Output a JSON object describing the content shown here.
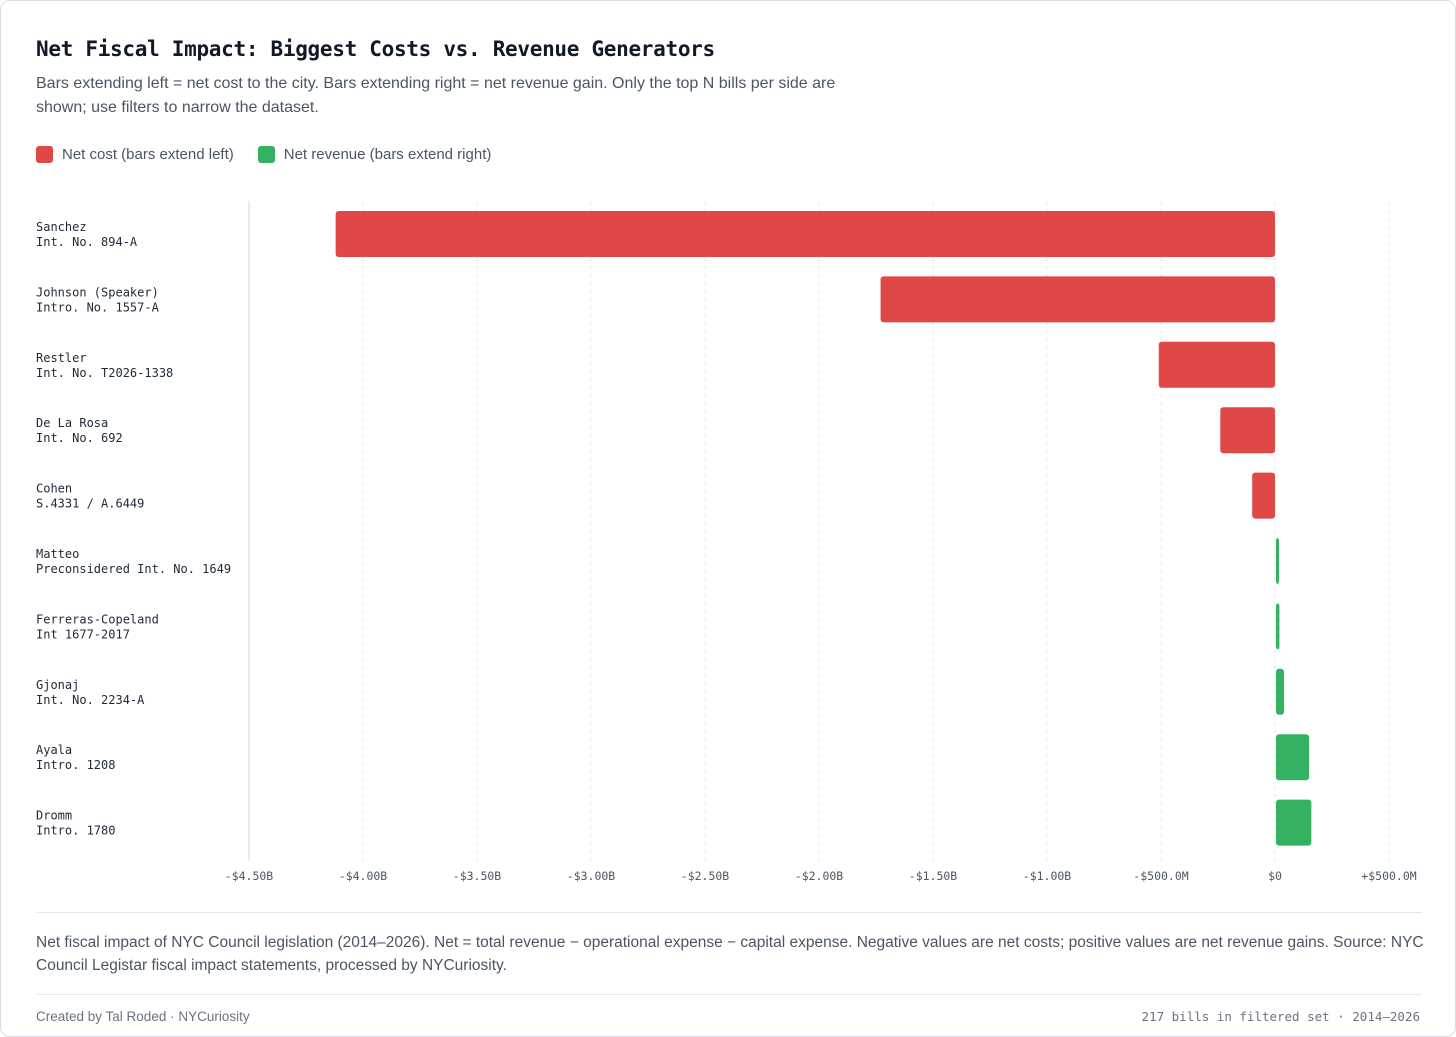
{
  "header": {
    "title": "Net Fiscal Impact: Biggest Costs vs. Revenue Generators",
    "subtitle": "Bars extending left = net cost to the city. Bars extending right = net revenue gain. Only the top N bills per side are shown; use filters to narrow the dataset."
  },
  "legend": {
    "cost_label": "Net cost (bars extend left)",
    "revenue_label": "Net revenue (bars extend right)"
  },
  "colors": {
    "cost": "#e04848",
    "revenue": "#34b262",
    "grid": "#e5e7eb",
    "axis": "#d1d5db"
  },
  "chart_data": {
    "type": "bar",
    "orientation": "horizontal",
    "title": "Net Fiscal Impact: Biggest Costs vs. Revenue Generators",
    "xlabel": "",
    "ylabel": "",
    "xlim": [
      -4500000000.0,
      500000000.0
    ],
    "grid": true,
    "ticks": [
      {
        "value": -4500000000.0,
        "label": "-$4.50B"
      },
      {
        "value": -4000000000.0,
        "label": "-$4.00B"
      },
      {
        "value": -3500000000.0,
        "label": "-$3.50B"
      },
      {
        "value": -3000000000.0,
        "label": "-$3.00B"
      },
      {
        "value": -2500000000.0,
        "label": "-$2.50B"
      },
      {
        "value": -2000000000.0,
        "label": "-$2.00B"
      },
      {
        "value": -1500000000.0,
        "label": "-$1.50B"
      },
      {
        "value": -1000000000.0,
        "label": "-$1.00B"
      },
      {
        "value": -500000000.0,
        "label": "-$500.0M"
      },
      {
        "value": 0,
        "label": "$0"
      },
      {
        "value": 500000000.0,
        "label": "+$500.0M"
      }
    ],
    "bars": [
      {
        "sponsor": "Sanchez",
        "bill": "Int. No. 894-A",
        "value": -4120000000
      },
      {
        "sponsor": "Johnson (Speaker)",
        "bill": "Intro. No. 1557-A",
        "value": -1730000000
      },
      {
        "sponsor": "Restler",
        "bill": "Int. No. T2026-1338",
        "value": -510000000
      },
      {
        "sponsor": "De La Rosa",
        "bill": "Int. No. 692",
        "value": -240000000
      },
      {
        "sponsor": "Cohen",
        "bill": "S.4331 / A.6449",
        "value": -100000000
      },
      {
        "sponsor": "Matteo",
        "bill": "Preconsidered Int. No. 1649",
        "value": 10000000
      },
      {
        "sponsor": "Ferreras-Copeland",
        "bill": "Int 1677-2017",
        "value": 15000000
      },
      {
        "sponsor": "Gjonaj",
        "bill": "Int. No. 2234-A",
        "value": 35000000
      },
      {
        "sponsor": "Ayala",
        "bill": "Intro. 1208",
        "value": 145000000
      },
      {
        "sponsor": "Dromm",
        "bill": "Intro. 1780",
        "value": 155000000
      }
    ]
  },
  "footer": {
    "note": "Net fiscal impact of NYC Council legislation (2014–2026). Net = total revenue − operational expense − capital expense. Negative values are net costs; positive values are net revenue gains. Source: NYC Council Legistar fiscal impact statements, processed by NYCuriosity.",
    "credit": "Created by Tal Roded · NYCuriosity",
    "count": "217 bills in filtered set · 2014–2026"
  }
}
